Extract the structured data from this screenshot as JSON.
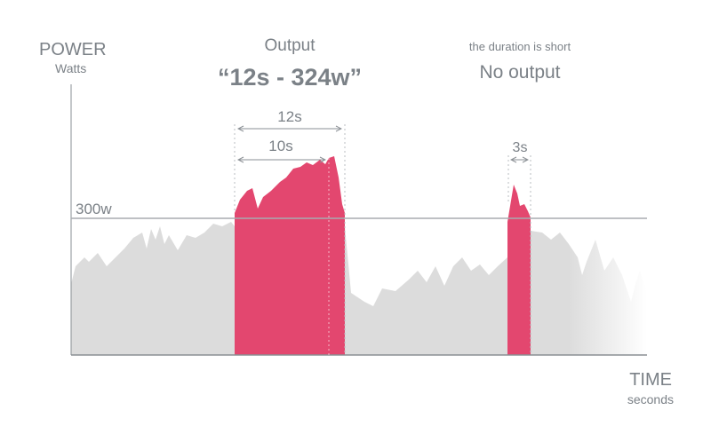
{
  "axis": {
    "y_label": "POWER",
    "y_unit": "Watts",
    "x_label": "TIME",
    "x_unit": "seconds"
  },
  "threshold": {
    "label": "300w"
  },
  "output": {
    "heading": "Output",
    "result": "“12s - 324w”"
  },
  "short": {
    "note": "the duration is short",
    "result": "No output"
  },
  "spans": {
    "total": "12s",
    "above": "10s",
    "short": "3s"
  }
}
